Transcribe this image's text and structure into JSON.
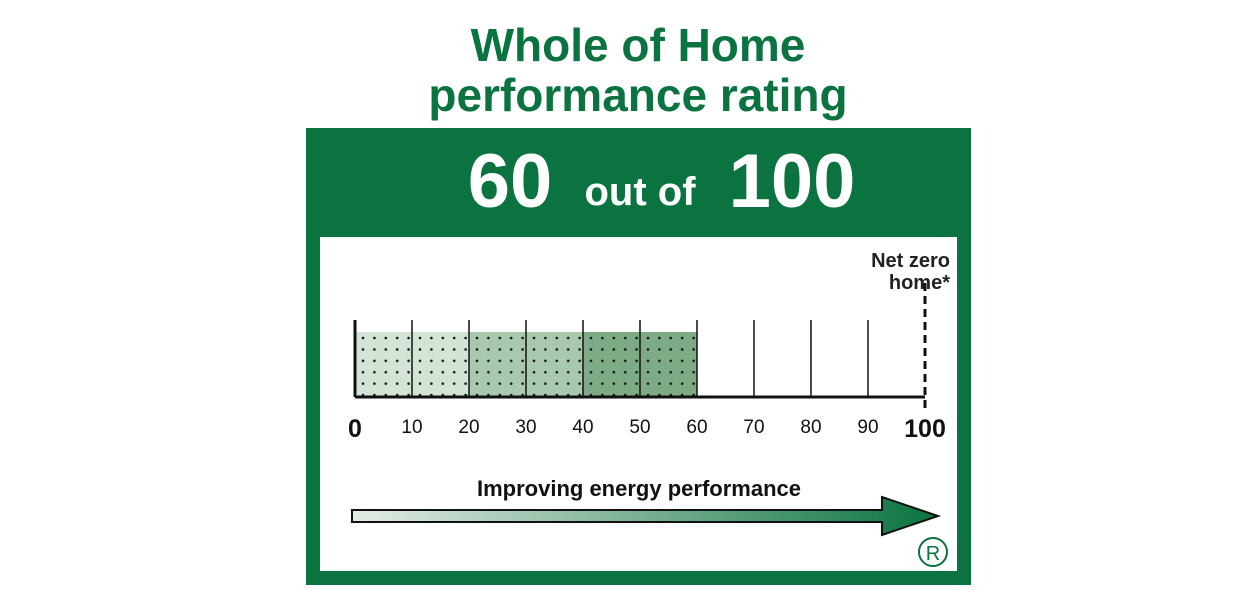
{
  "chart_data": {
    "type": "rating",
    "title": "Whole of Home performance rating",
    "rating": {
      "value": 60,
      "connector": "out of",
      "max": 100
    },
    "values": [
      60
    ],
    "xlim": [
      0,
      100
    ],
    "xticks": [
      0,
      10,
      20,
      30,
      40,
      50,
      60,
      70,
      80,
      90,
      100
    ],
    "colors": [
      "#d3e3d6",
      "#a9c9af",
      "#7cab86"
    ],
    "color": "#0b7340",
    "annotation": "Net zero home*",
    "arrow_label": "Improving energy performance",
    "registered_mark": "R"
  }
}
